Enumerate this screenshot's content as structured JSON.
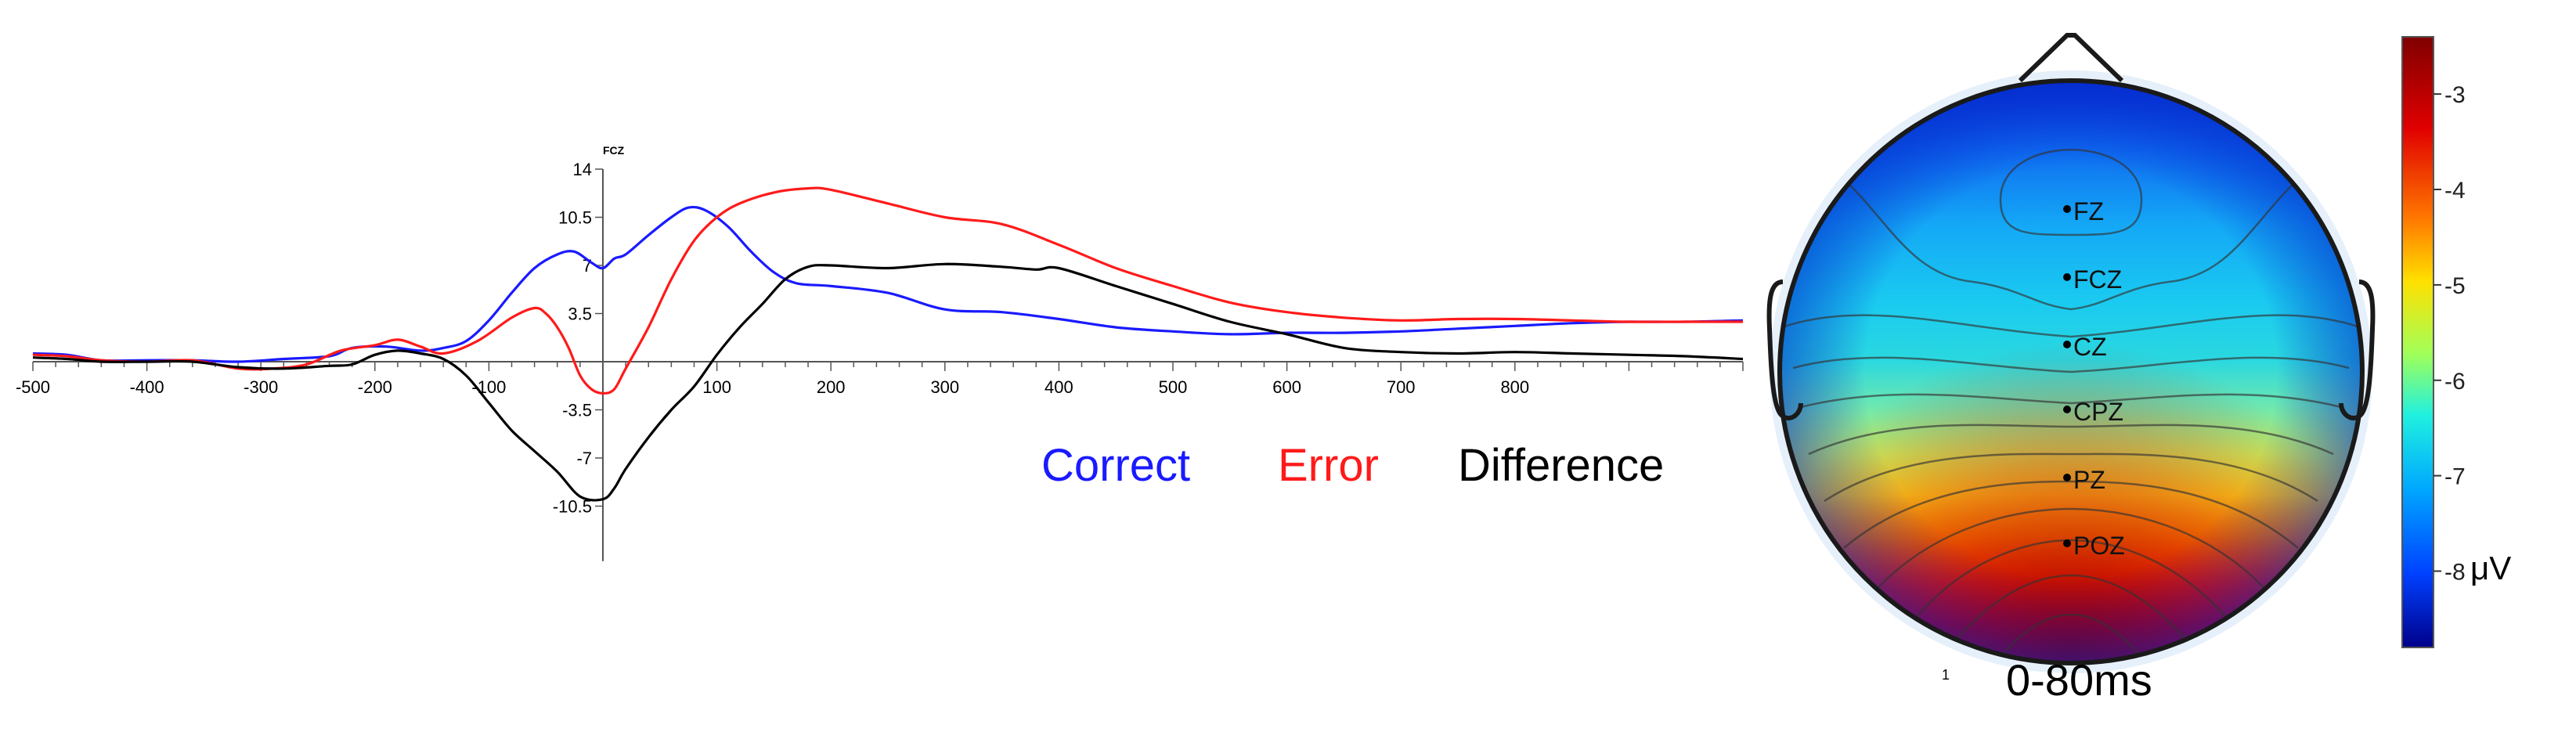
{
  "chart_data": [
    {
      "type": "line",
      "channel_label": "FCZ",
      "title": "",
      "xlabel": "",
      "ylabel": "",
      "xlim": [
        -500,
        1000
      ],
      "ylim": [
        -10.5,
        14
      ],
      "x_ticks": [
        -500,
        -400,
        -300,
        -200,
        -100,
        100,
        200,
        300,
        400,
        500,
        600,
        700,
        800
      ],
      "y_ticks": [
        14,
        10.5,
        7,
        3.5,
        -3.5,
        -7,
        -10.5
      ],
      "legend": [
        "Correct",
        "Error",
        "Difference"
      ],
      "legend_position": "bottom-right",
      "series": [
        {
          "name": "Correct",
          "color": "#1a1aff",
          "x": [
            -500,
            -470,
            -440,
            -400,
            -360,
            -320,
            -280,
            -240,
            -220,
            -190,
            -160,
            -140,
            -120,
            -100,
            -80,
            -60,
            -40,
            -25,
            -10,
            0,
            10,
            20,
            40,
            60,
            75,
            90,
            110,
            130,
            150,
            170,
            200,
            250,
            300,
            350,
            400,
            450,
            500,
            550,
            600,
            650,
            700,
            750,
            800,
            850,
            900,
            950,
            1000
          ],
          "y": [
            0.6,
            0.5,
            0.1,
            0.1,
            0.1,
            0,
            0.2,
            0.4,
            1.0,
            1.1,
            0.8,
            1.0,
            1.5,
            3.0,
            5.0,
            6.8,
            7.8,
            8.0,
            7.2,
            6.8,
            7.5,
            7.8,
            9.2,
            10.5,
            11.2,
            11.0,
            9.8,
            8.0,
            6.5,
            5.7,
            5.5,
            5.0,
            3.8,
            3.6,
            3.1,
            2.5,
            2.2,
            2.0,
            2.1,
            2.1,
            2.2,
            2.4,
            2.6,
            2.8,
            2.9,
            2.9,
            3.0
          ]
        },
        {
          "name": "Error",
          "color": "#ff1a1a",
          "x": [
            -500,
            -470,
            -440,
            -400,
            -360,
            -320,
            -290,
            -260,
            -230,
            -200,
            -180,
            -160,
            -140,
            -110,
            -80,
            -60,
            -50,
            -40,
            -30,
            -20,
            -10,
            0,
            10,
            20,
            40,
            60,
            80,
            100,
            120,
            150,
            180,
            200,
            250,
            300,
            350,
            400,
            450,
            500,
            550,
            600,
            650,
            700,
            750,
            800,
            850,
            900,
            950,
            1000
          ],
          "y": [
            0.5,
            0.4,
            0.1,
            0,
            0.1,
            -0.5,
            -0.5,
            -0.2,
            0.8,
            1.2,
            1.6,
            1.1,
            0.6,
            1.5,
            3.2,
            3.9,
            3.5,
            2.5,
            1.0,
            -1.0,
            -2.0,
            -2.3,
            -2.0,
            -0.5,
            2.5,
            6.0,
            8.8,
            10.5,
            11.5,
            12.3,
            12.6,
            12.5,
            11.5,
            10.5,
            10.0,
            8.5,
            6.8,
            5.5,
            4.3,
            3.6,
            3.2,
            3.0,
            3.1,
            3.1,
            3.0,
            2.9,
            2.9,
            2.9
          ]
        },
        {
          "name": "Difference",
          "color": "#000000",
          "x": [
            -500,
            -470,
            -440,
            -400,
            -360,
            -320,
            -280,
            -240,
            -220,
            -200,
            -180,
            -160,
            -140,
            -120,
            -100,
            -80,
            -60,
            -40,
            -20,
            0,
            10,
            20,
            40,
            60,
            80,
            100,
            120,
            140,
            160,
            180,
            200,
            250,
            300,
            350,
            380,
            400,
            450,
            500,
            550,
            600,
            650,
            700,
            750,
            800,
            850,
            900,
            950,
            1000
          ],
          "y": [
            0.3,
            0.2,
            0,
            0,
            0,
            -0.4,
            -0.5,
            -0.3,
            -0.2,
            0.5,
            0.8,
            0.6,
            0.2,
            -1.0,
            -3.0,
            -5.0,
            -6.5,
            -8.0,
            -9.8,
            -10.0,
            -9.2,
            -7.8,
            -5.5,
            -3.5,
            -1.8,
            0.5,
            2.5,
            4.2,
            6.0,
            6.9,
            7.0,
            6.8,
            7.1,
            6.9,
            6.7,
            6.8,
            5.5,
            4.2,
            2.9,
            2.0,
            1.0,
            0.7,
            0.6,
            0.7,
            0.6,
            0.5,
            0.4,
            0.2
          ]
        }
      ]
    },
    {
      "type": "heatmap",
      "subtype": "scalp-topography",
      "caption": "0-80ms",
      "small_mark": "1",
      "unit": "μV",
      "colorbar_ticks": [
        -3,
        -4,
        -5,
        -6,
        -7,
        -8
      ],
      "value_range": [
        -8.8,
        -2.4
      ],
      "electrodes": [
        {
          "label": "FZ",
          "value": -7.4
        },
        {
          "label": "FCZ",
          "value": -7.6
        },
        {
          "label": "CZ",
          "value": -6.6
        },
        {
          "label": "CPZ",
          "value": -5.4
        },
        {
          "label": "PZ",
          "value": -3.8
        },
        {
          "label": "POZ",
          "value": -2.8
        }
      ]
    }
  ]
}
